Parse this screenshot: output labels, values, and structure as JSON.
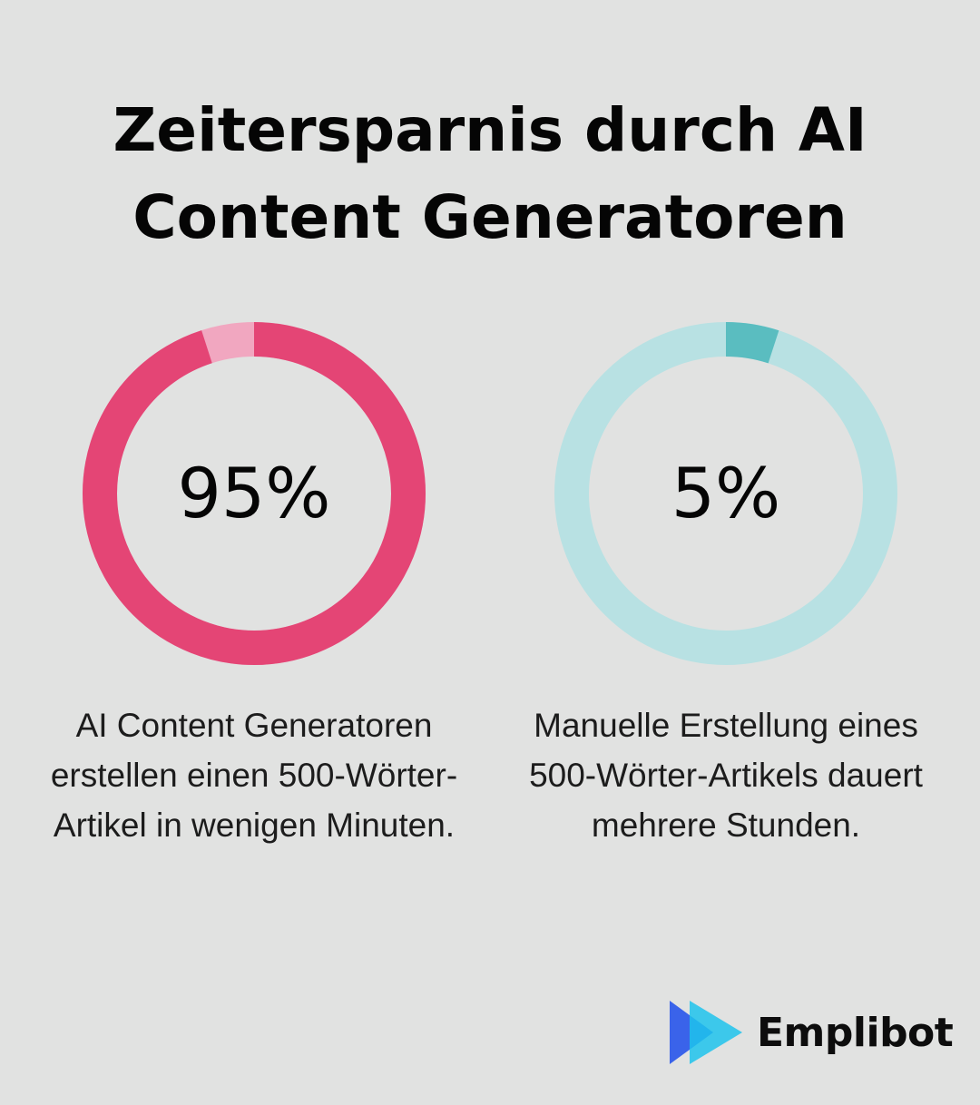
{
  "title": "Zeitersparnis durch AI Content Generatoren",
  "colors": {
    "background": "#e1e2e1",
    "left_main": "#e44575",
    "left_rest": "#f1a7c0",
    "right_main": "#5abdc0",
    "right_rest": "#b8e1e3",
    "logo_blue": "#3a63ea",
    "logo_cyan": "#1fc3ec"
  },
  "chart_data": [
    {
      "type": "pie",
      "variant": "donut",
      "label": "95%",
      "value": 95,
      "remainder": 5,
      "caption": "AI Content Generatoren erstellen einen 500-Wörter-Artikel in wenigen Minuten."
    },
    {
      "type": "pie",
      "variant": "donut",
      "label": "5%",
      "value": 5,
      "remainder": 95,
      "caption": "Manuelle Erstellung eines 500-Wörter-Artikels dauert mehrere Stunden."
    }
  ],
  "brand": {
    "name": "Emplibot",
    "logo_icon": "play-arrows-icon"
  }
}
